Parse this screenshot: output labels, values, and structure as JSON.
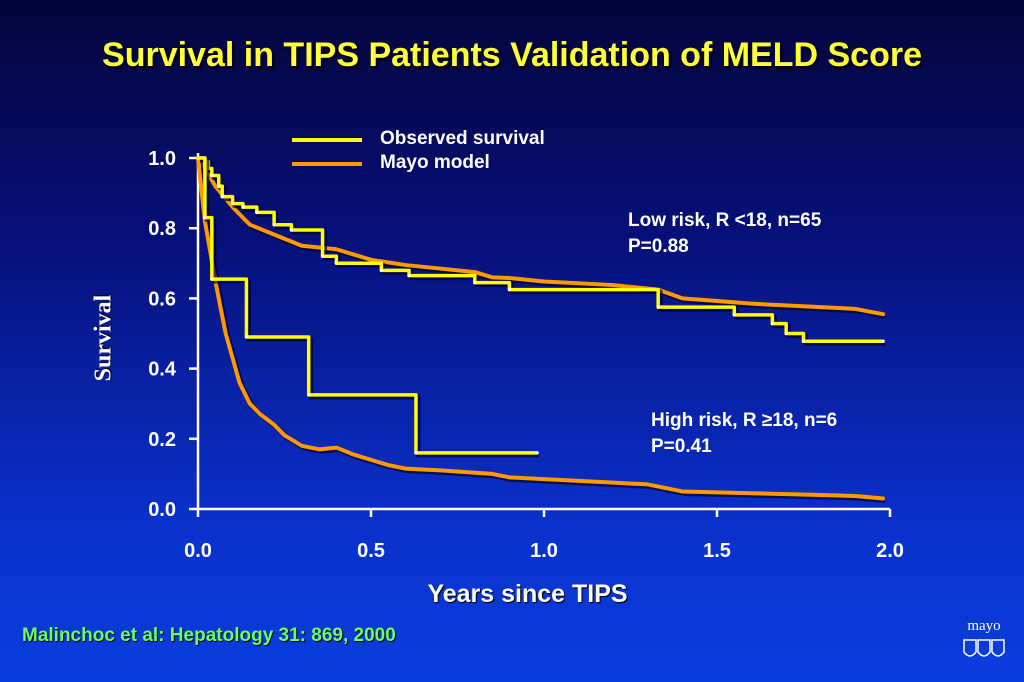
{
  "title": "Survival in TIPS Patients Validation of MELD Score",
  "citation": "Malinchoc et al:  Hepatology 31: 869, 2000",
  "logo_text": "mayo",
  "colors": {
    "observed": "#ffff00",
    "model": "#ff9900",
    "axis": "#ffffff",
    "title": "#ffff33",
    "citation": "#66ff66"
  },
  "chart_data": {
    "type": "line",
    "xlabel": "Years since TIPS",
    "ylabel": "Survival",
    "xlim": [
      0,
      2
    ],
    "ylim": [
      0,
      1
    ],
    "xticks": [
      "0.0",
      "0.5",
      "1.0",
      "1.5",
      "2.0"
    ],
    "yticks": [
      "0.0",
      "0.2",
      "0.4",
      "0.6",
      "0.8",
      "1.0"
    ],
    "grid": false,
    "legend": {
      "placement": "top",
      "entries": [
        {
          "label": "Observed survival",
          "style": "observed"
        },
        {
          "label": "Mayo model",
          "style": "model"
        }
      ]
    },
    "annotations": [
      {
        "group": "low",
        "lines": [
          "Low risk, R <18, n=65",
          "P=0.88"
        ]
      },
      {
        "group": "high",
        "lines": [
          "High risk, R ≥18, n=6",
          "P=0.41"
        ]
      }
    ],
    "series": [
      {
        "group": "low",
        "kind": "observed",
        "step": true,
        "points": [
          [
            0,
            1.0
          ],
          [
            0.02,
            0.99
          ],
          [
            0.03,
            0.97
          ],
          [
            0.04,
            0.95
          ],
          [
            0.06,
            0.92
          ],
          [
            0.07,
            0.89
          ],
          [
            0.1,
            0.87
          ],
          [
            0.13,
            0.86
          ],
          [
            0.17,
            0.845
          ],
          [
            0.22,
            0.81
          ],
          [
            0.27,
            0.795
          ],
          [
            0.36,
            0.72
          ],
          [
            0.4,
            0.7
          ],
          [
            0.53,
            0.68
          ],
          [
            0.61,
            0.665
          ],
          [
            0.8,
            0.645
          ],
          [
            0.9,
            0.625
          ],
          [
            1.33,
            0.575
          ],
          [
            1.55,
            0.553
          ],
          [
            1.66,
            0.528
          ],
          [
            1.7,
            0.5
          ],
          [
            1.75,
            0.478
          ],
          [
            1.98,
            0.478
          ]
        ]
      },
      {
        "group": "low",
        "kind": "model",
        "step": false,
        "points": [
          [
            0,
            1.0
          ],
          [
            0.02,
            0.97
          ],
          [
            0.05,
            0.92
          ],
          [
            0.1,
            0.86
          ],
          [
            0.15,
            0.81
          ],
          [
            0.2,
            0.79
          ],
          [
            0.3,
            0.75
          ],
          [
            0.4,
            0.74
          ],
          [
            0.5,
            0.71
          ],
          [
            0.6,
            0.695
          ],
          [
            0.7,
            0.685
          ],
          [
            0.8,
            0.675
          ],
          [
            0.85,
            0.66
          ],
          [
            0.9,
            0.658
          ],
          [
            1.0,
            0.648
          ],
          [
            1.2,
            0.638
          ],
          [
            1.33,
            0.625
          ],
          [
            1.4,
            0.6
          ],
          [
            1.6,
            0.585
          ],
          [
            1.8,
            0.575
          ],
          [
            1.9,
            0.57
          ],
          [
            1.98,
            0.555
          ]
        ]
      },
      {
        "group": "high",
        "kind": "observed",
        "step": true,
        "points": [
          [
            0,
            1.0
          ],
          [
            0.02,
            0.83
          ],
          [
            0.04,
            0.655
          ],
          [
            0.14,
            0.49
          ],
          [
            0.32,
            0.325
          ],
          [
            0.63,
            0.16
          ],
          [
            0.98,
            0.16
          ]
        ]
      },
      {
        "group": "high",
        "kind": "model",
        "step": false,
        "points": [
          [
            0,
            1.0
          ],
          [
            0.02,
            0.82
          ],
          [
            0.05,
            0.65
          ],
          [
            0.08,
            0.5
          ],
          [
            0.12,
            0.36
          ],
          [
            0.15,
            0.3
          ],
          [
            0.18,
            0.27
          ],
          [
            0.22,
            0.24
          ],
          [
            0.25,
            0.21
          ],
          [
            0.3,
            0.18
          ],
          [
            0.35,
            0.17
          ],
          [
            0.4,
            0.175
          ],
          [
            0.45,
            0.155
          ],
          [
            0.55,
            0.125
          ],
          [
            0.6,
            0.115
          ],
          [
            0.7,
            0.11
          ],
          [
            0.85,
            0.1
          ],
          [
            0.9,
            0.09
          ],
          [
            1.0,
            0.085
          ],
          [
            1.2,
            0.075
          ],
          [
            1.3,
            0.07
          ],
          [
            1.35,
            0.06
          ],
          [
            1.4,
            0.05
          ],
          [
            1.6,
            0.045
          ],
          [
            1.8,
            0.04
          ],
          [
            1.9,
            0.037
          ],
          [
            1.98,
            0.03
          ]
        ]
      }
    ]
  }
}
